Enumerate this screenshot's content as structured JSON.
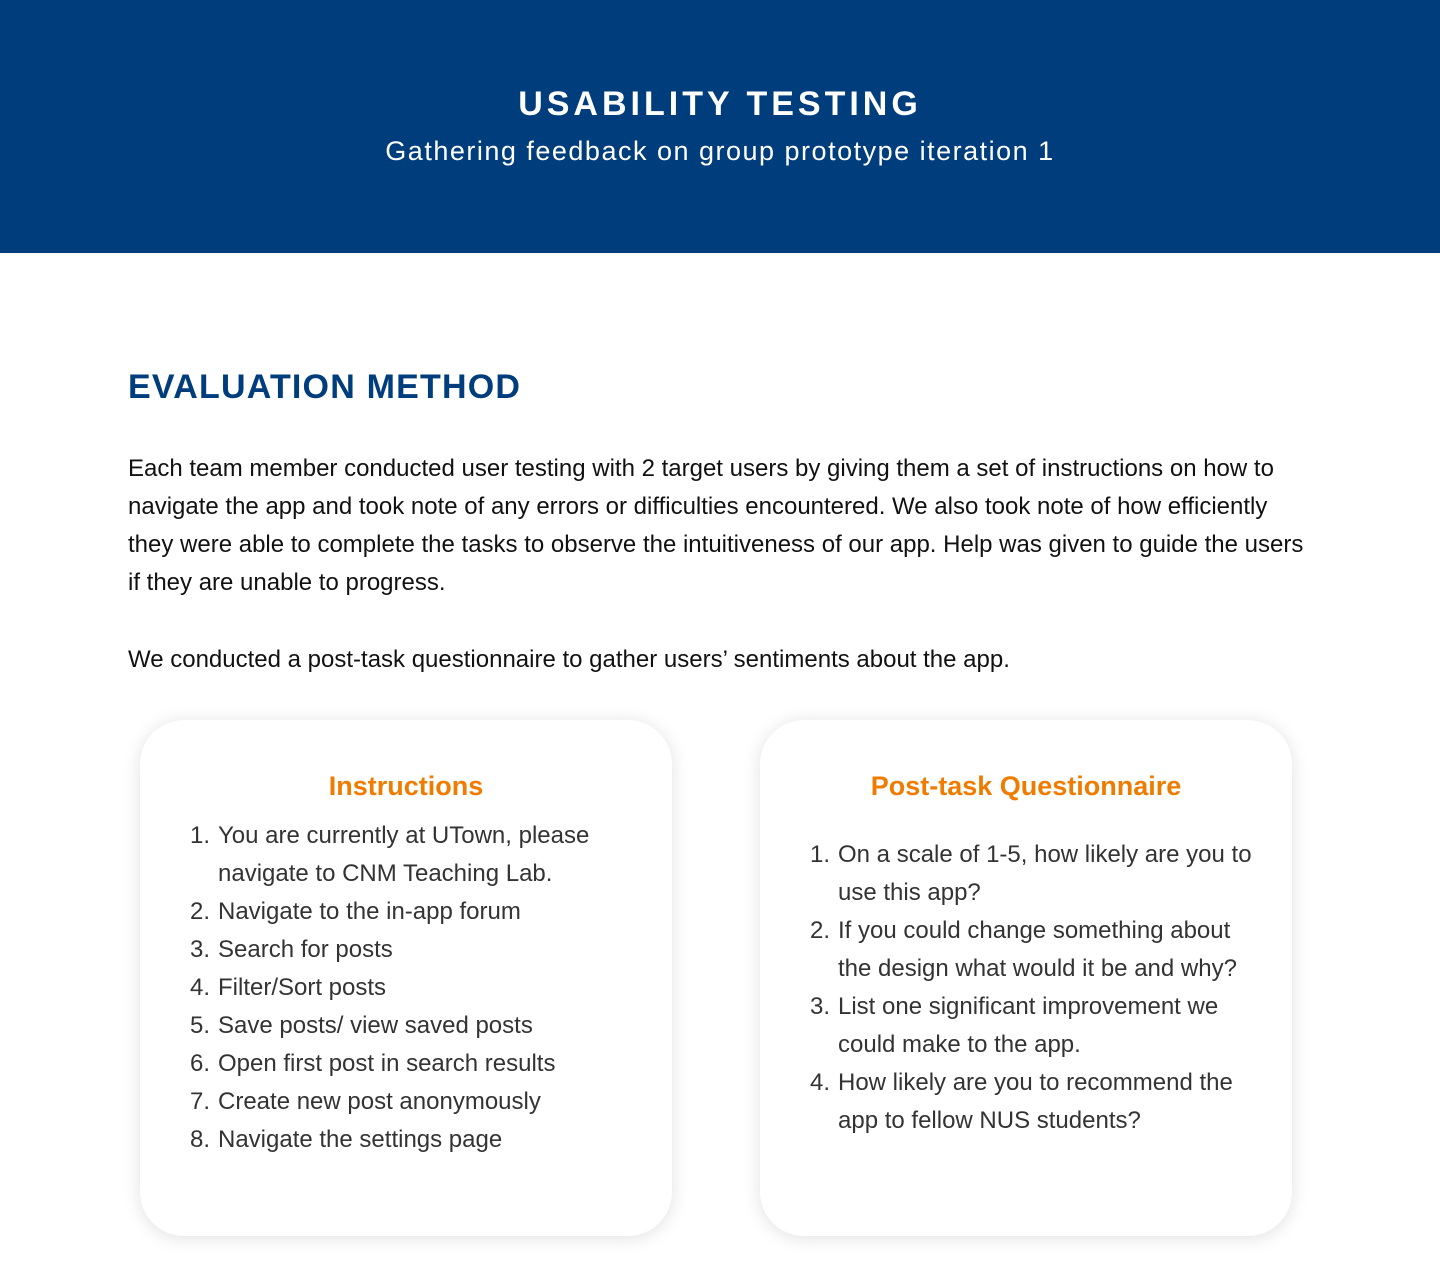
{
  "hero": {
    "title": "USABILITY TESTING",
    "subtitle": "Gathering feedback on group prototype iteration 1"
  },
  "evaluation": {
    "heading": "EVALUATION METHOD",
    "paragraph_1": "Each team member conducted user testing with 2 target users by giving them a set of instructions on how to navigate the app and took note of any errors or difficulties encountered. We also took note of how efficiently they were able to complete the tasks to observe the intuitiveness of our app. Help was given to guide the users if they are unable to progress.",
    "paragraph_2": "We conducted a post-task questionnaire to gather users’ sentiments about the app."
  },
  "instructions": {
    "title": "Instructions",
    "items": [
      {
        "num": "1.",
        "text": "You are currently at UTown, please navigate to CNM Teaching Lab."
      },
      {
        "num": "2.",
        "text": "Navigate to the in-app forum"
      },
      {
        "num": "3.",
        "text": "Search for posts"
      },
      {
        "num": "4.",
        "text": "Filter/Sort posts"
      },
      {
        "num": "5.",
        "text": "Save posts/ view saved posts"
      },
      {
        "num": "6.",
        "text": "Open first post in search results"
      },
      {
        "num": "7.",
        "text": "Create new post anonymously"
      },
      {
        "num": "8.",
        "text": "Navigate the settings page"
      }
    ]
  },
  "questionnaire": {
    "title": "Post-task Questionnaire",
    "items": [
      {
        "num": "1.",
        "text": "On a scale of 1-5, how likely are you to use this app?"
      },
      {
        "num": "2.",
        "text": "If you could change something about the design what would it be and why?"
      },
      {
        "num": "3.",
        "text": "List one significant improvement we could make to the app."
      },
      {
        "num": "4.",
        "text": "How likely are you to recommend the app to fellow NUS students?"
      }
    ]
  },
  "colors": {
    "brand_blue": "#003d7c",
    "accent_orange": "#ef7c00"
  }
}
